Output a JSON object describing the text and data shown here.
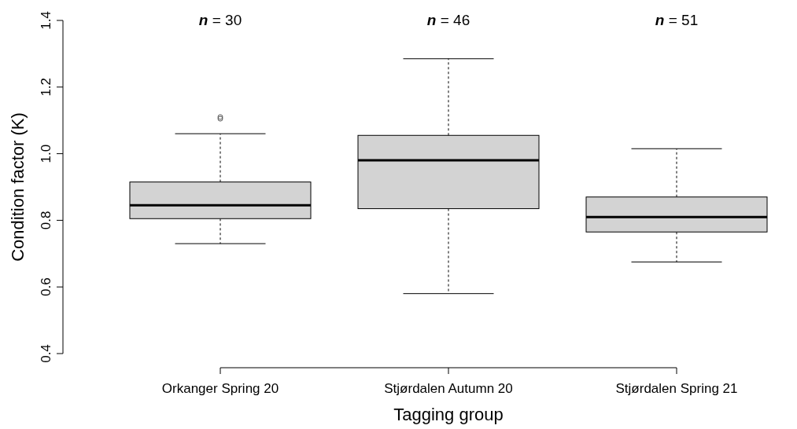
{
  "chart_data": {
    "type": "box",
    "xlabel": "Tagging group",
    "ylabel": "Condition factor (K)",
    "categories": [
      "Orkanger Spring 20",
      "Stjørdalen Autumn 20",
      "Stjørdalen Spring 21"
    ],
    "color": "#d3d3d3",
    "boxes": [
      {
        "low": 0.73,
        "q1": 0.805,
        "median": 0.845,
        "q3": 0.915,
        "high": 1.06,
        "outliers": [
          1.105,
          1.11
        ]
      },
      {
        "low": 0.58,
        "q1": 0.835,
        "median": 0.98,
        "q3": 1.055,
        "high": 1.285
      },
      {
        "low": 0.675,
        "q1": 0.765,
        "median": 0.81,
        "q3": 0.87,
        "high": 1.015
      }
    ],
    "ylim": [
      0.4,
      1.4
    ],
    "yticks": [
      0.4,
      0.6,
      0.8,
      {
        "value": 1,
        "label": "1.0"
      },
      1.2,
      1.4
    ],
    "annotations": [
      "n = 30",
      "n = 46",
      "n = 51"
    ]
  }
}
